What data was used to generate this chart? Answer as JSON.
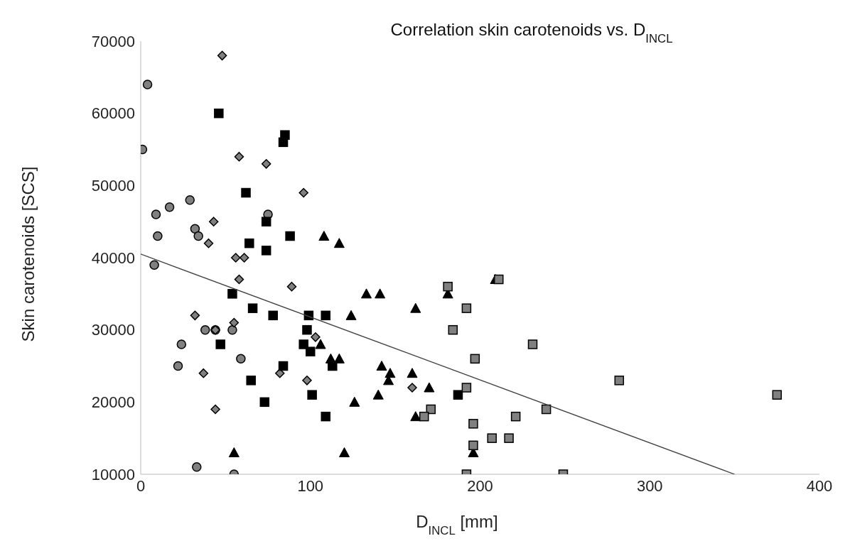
{
  "chart_data": {
    "type": "scatter",
    "title": "Correlation skin carotenoids vs. D$_{INCL}$",
    "xlabel": "D$_{INCL}$ [mm]",
    "ylabel": "Skin carotenoids [SCS]",
    "xlim": [
      0,
      400
    ],
    "xticks": [
      0,
      100,
      200,
      300,
      400
    ],
    "ylim": [
      10000,
      70000
    ],
    "yticks": [
      10000,
      20000,
      30000,
      40000,
      50000,
      60000,
      70000
    ],
    "grid": false,
    "legend": false,
    "series": [
      {
        "color": "#808080",
        "marker": "circle",
        "x": [
          1,
          4,
          8,
          9,
          10,
          17,
          29,
          32,
          34,
          24,
          22,
          38,
          44,
          54,
          59,
          33,
          55,
          75
        ],
        "values": [
          55000,
          64000,
          39000,
          46000,
          43000,
          47000,
          48000,
          44000,
          43000,
          28000,
          25000,
          30000,
          30000,
          30000,
          26000,
          11000,
          10000,
          46000
        ]
      },
      {
        "color": "#808080",
        "marker": "diamond",
        "x": [
          48,
          58,
          74,
          96,
          43,
          40,
          56,
          61,
          58,
          89,
          32,
          55,
          44,
          103,
          37,
          82,
          98,
          44,
          160
        ],
        "values": [
          68000,
          54000,
          53000,
          49000,
          45000,
          42000,
          40000,
          40000,
          37000,
          36000,
          32000,
          31000,
          30000,
          29000,
          24000,
          24000,
          23000,
          19000,
          22000
        ]
      },
      {
        "color": "#000000",
        "marker": "square",
        "x": [
          46,
          85,
          84,
          62,
          74,
          64,
          74,
          88,
          54,
          66,
          78,
          99,
          109,
          98,
          47,
          96,
          100,
          84,
          65,
          101,
          73,
          109,
          187,
          113
        ],
        "values": [
          60000,
          57000,
          56000,
          49000,
          45000,
          42000,
          41000,
          43000,
          35000,
          33000,
          32000,
          32000,
          32000,
          30000,
          28000,
          28000,
          27000,
          25000,
          23000,
          21000,
          20000,
          18000,
          21000,
          25000
        ]
      },
      {
        "color": "#000000",
        "marker": "triangle",
        "x": [
          108,
          117,
          133,
          141,
          124,
          162,
          181,
          209,
          106,
          112,
          117,
          142,
          147,
          146,
          160,
          170,
          140,
          126,
          162,
          120,
          196,
          55
        ],
        "values": [
          43000,
          42000,
          35000,
          35000,
          32000,
          33000,
          35000,
          37000,
          28000,
          26000,
          26000,
          25000,
          24000,
          23000,
          24000,
          22000,
          21000,
          20000,
          18000,
          13000,
          13000,
          13000
        ]
      },
      {
        "color": "#808080",
        "marker": "square",
        "x": [
          181,
          192,
          184,
          211,
          231,
          197,
          192,
          171,
          167,
          239,
          221,
          196,
          207,
          217,
          196,
          192,
          249,
          282,
          375
        ],
        "values": [
          36000,
          33000,
          30000,
          37000,
          28000,
          26000,
          22000,
          19000,
          18000,
          19000,
          18000,
          17000,
          15000,
          15000,
          14000,
          10000,
          10000,
          23000,
          21000
        ]
      },
      {
        "type": "line",
        "color": "#404040",
        "marker": "none",
        "line_style": "solid",
        "x": [
          0,
          350
        ],
        "values": [
          40500,
          10000
        ]
      }
    ]
  }
}
